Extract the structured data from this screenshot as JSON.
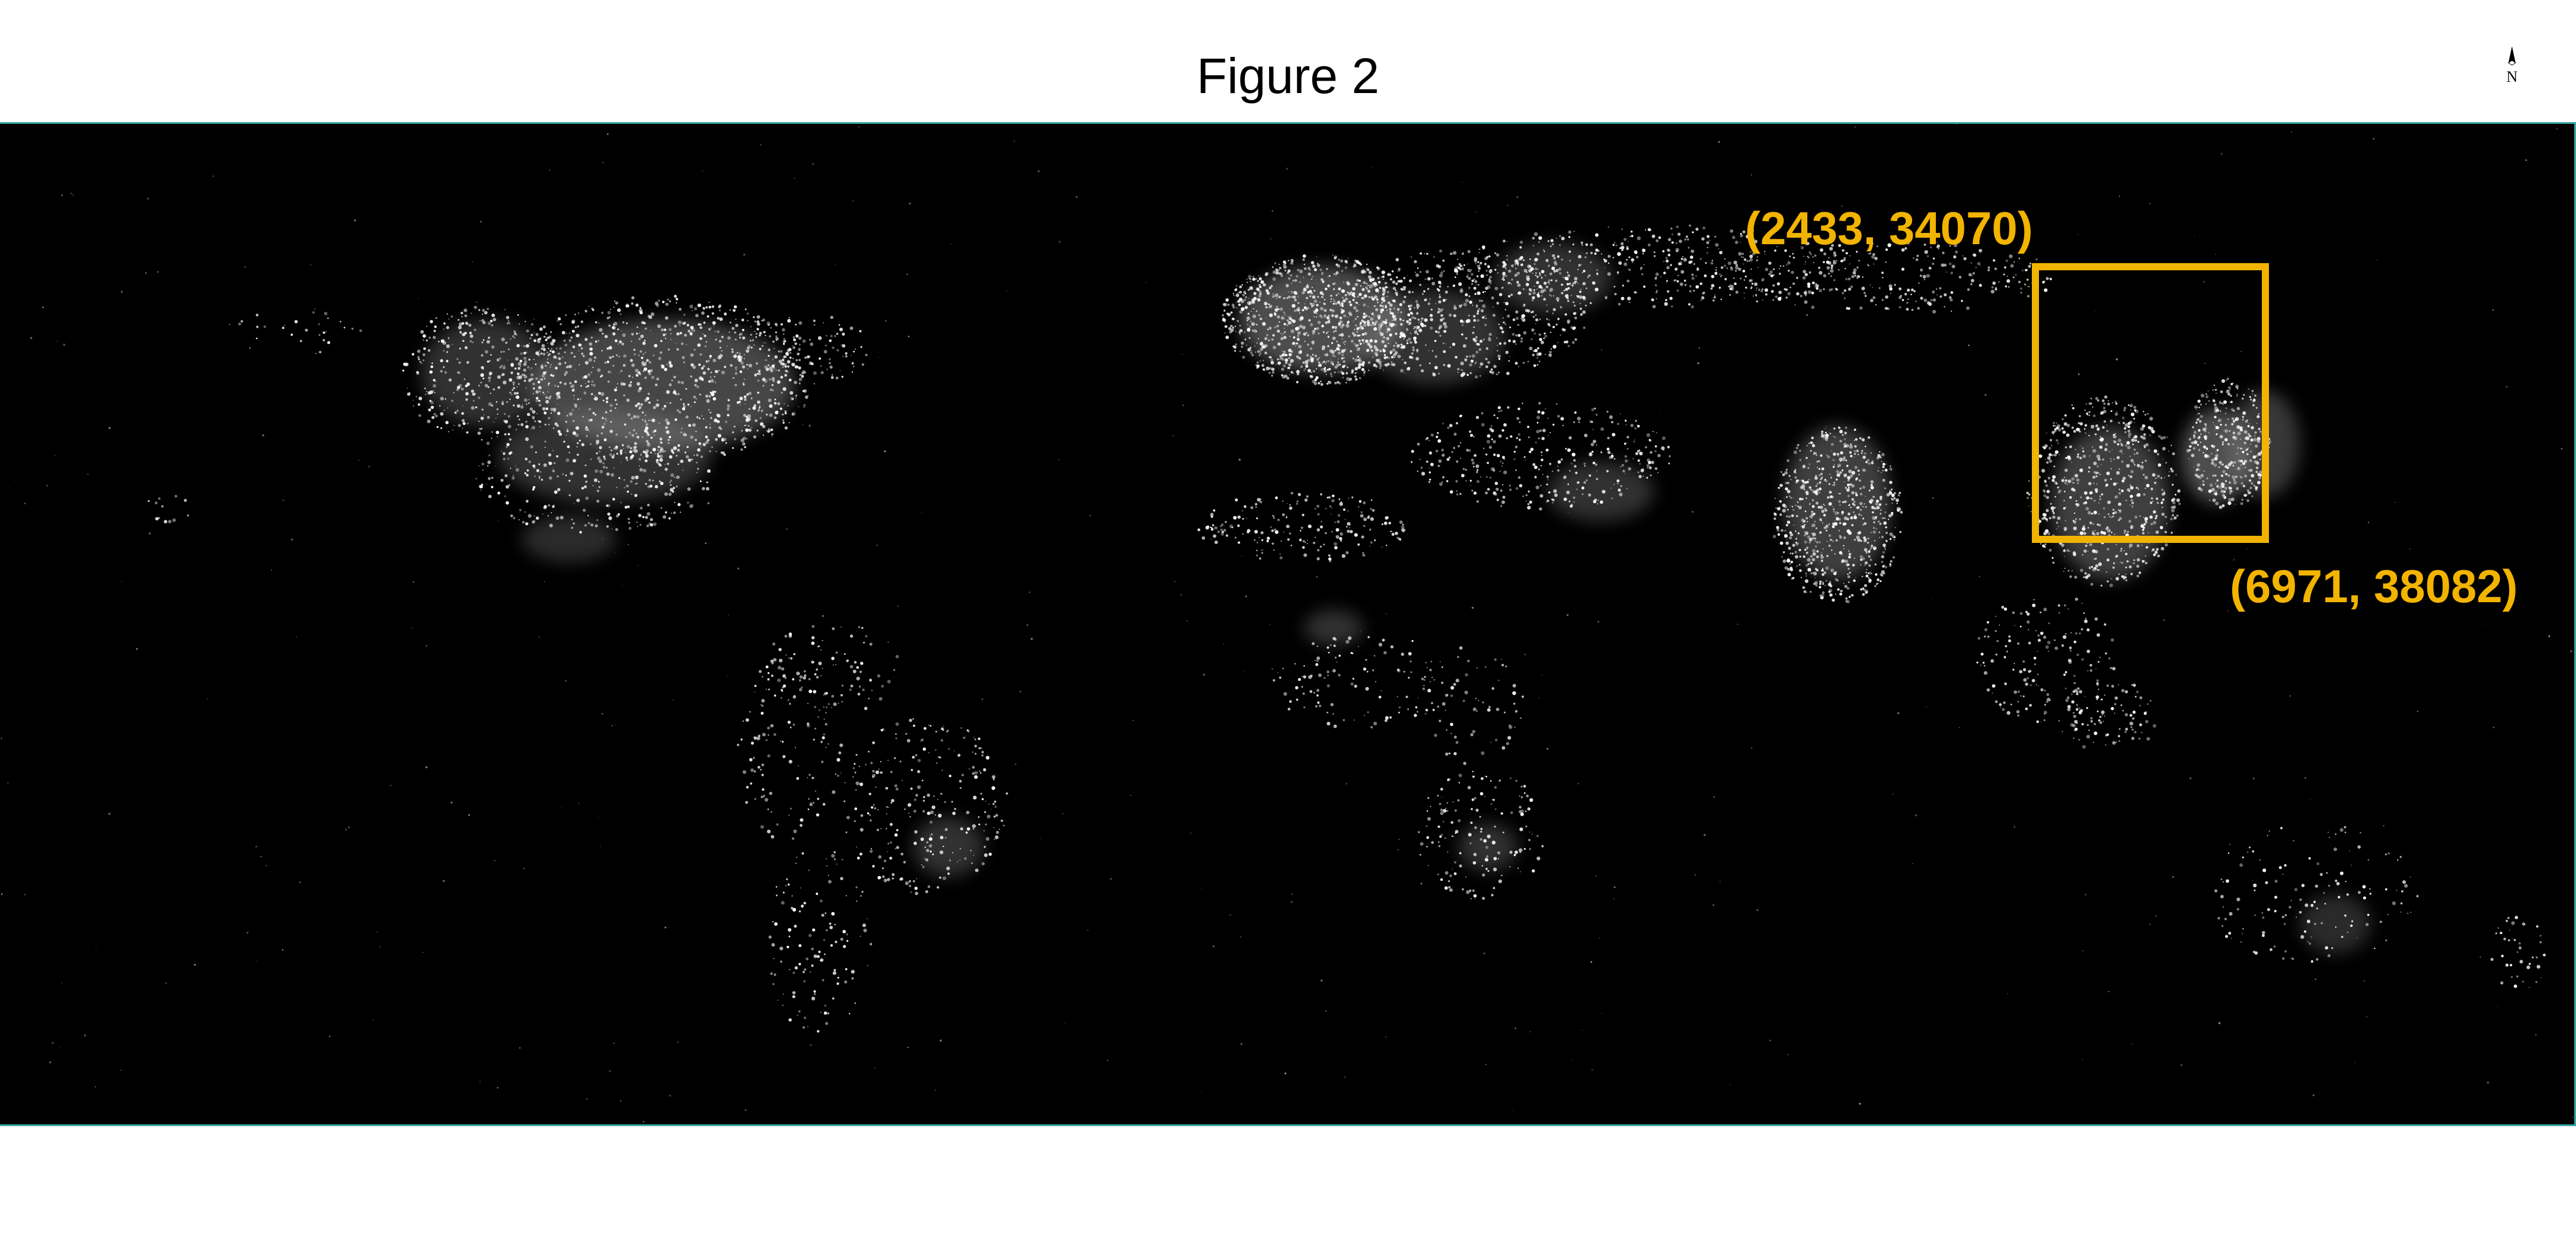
{
  "figure": {
    "title": "Figure 2"
  },
  "north_arrow": {
    "label": "N",
    "icon": "north-arrow-icon"
  },
  "map": {
    "description_type": "night-lights",
    "background_color": "#000000",
    "lights_color": "#ffffff",
    "frame_color": "#3aa7a3"
  },
  "region_of_interest": {
    "color": "#f2b400",
    "top_left_label": "(2433, 34070)",
    "bottom_right_label": "(6971, 38082)"
  }
}
